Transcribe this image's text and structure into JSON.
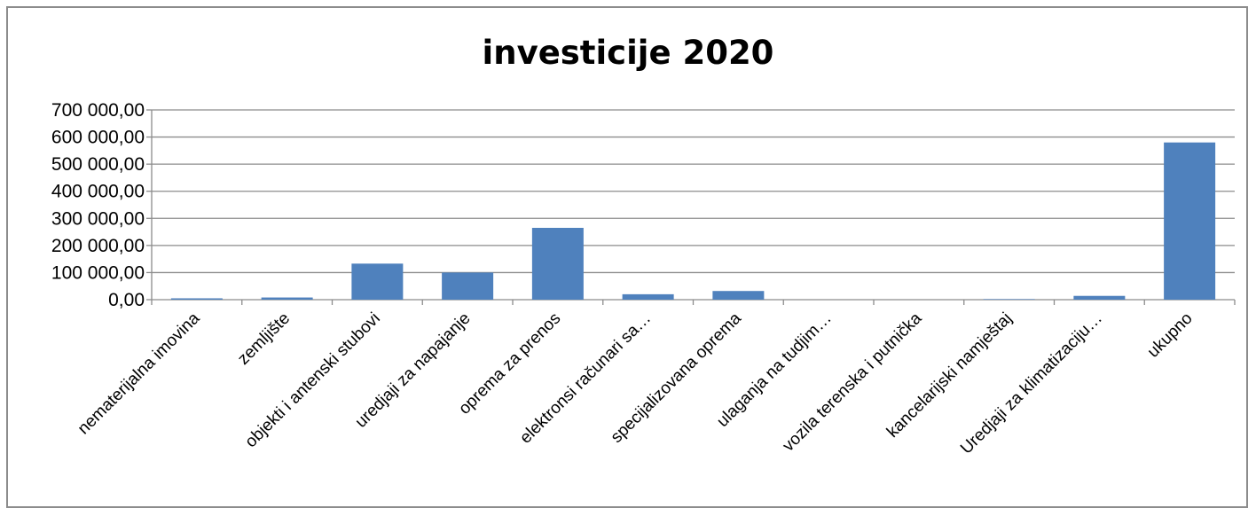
{
  "chart_data": {
    "type": "bar",
    "title": "investicije 2020",
    "xlabel": "",
    "ylabel": "",
    "categories": [
      "nematerijalna imovina",
      "zemljište",
      "objekti i antenski stubovi",
      "uredjaji za napajanje",
      "oprema za prenos",
      "elektronsi računari sa…",
      "specijalizovana oprema",
      "ulaganja na tudjim…",
      "vozila terenska i putnička",
      "kancelarijski namještaj",
      "Uredjaji za klimatizaciju…",
      "ukupno"
    ],
    "values": [
      5000,
      8000,
      133000,
      100000,
      265000,
      20000,
      32000,
      0,
      0,
      2000,
      14000,
      580000
    ],
    "ylim": [
      0,
      700000
    ],
    "yticks": [
      0,
      100000,
      200000,
      300000,
      400000,
      500000,
      600000,
      700000
    ],
    "ytick_labels": [
      "0,00",
      "100 000,00",
      "200 000,00",
      "300 000,00",
      "400 000,00",
      "500 000,00",
      "600 000,00",
      "700 000,00"
    ],
    "grid": true,
    "bar_color": "#4f81bd",
    "grid_color": "#8c8c8c"
  }
}
